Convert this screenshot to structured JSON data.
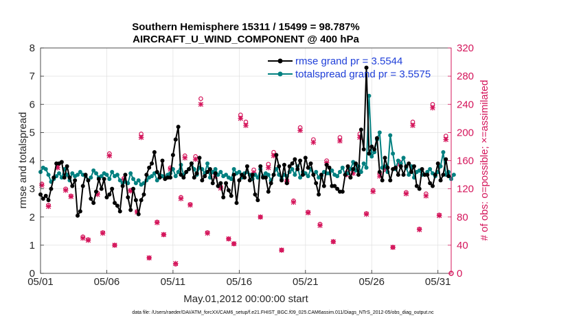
{
  "chart_data": {
    "type": "line",
    "title": "Southern Hemisphere 15311 / 15499 = 98.787%",
    "subtitle": "AIRCRAFT_U_WIND_COMPONENT @ 400 hPa",
    "xlabel": "May.01,2012 00:00:00 start",
    "ylabel": "rmse and totalspread",
    "ylabel_right": "# of obs: o=possible; ×=assimilated",
    "xlim": [
      0,
      31
    ],
    "ylim": [
      0,
      8
    ],
    "ylim_right": [
      0,
      320
    ],
    "x_tick_values": [
      0,
      5,
      10,
      15,
      20,
      25,
      30
    ],
    "x_tick_labels": [
      "05/01",
      "05/06",
      "05/11",
      "05/16",
      "05/21",
      "05/26",
      "05/31"
    ],
    "y_ticks": [
      "0",
      "1",
      "2",
      "3",
      "4",
      "5",
      "6",
      "7",
      "8"
    ],
    "y_ticks_right": [
      "0",
      "40",
      "80",
      "120",
      "160",
      "200",
      "240",
      "280",
      "320"
    ],
    "legend": [
      "rmse grand pr = 3.5544",
      "totalspread grand pr = 3.5575"
    ],
    "footer": "data file: /Users/raeder/DAI/ATM_forcXX/CAM6_setup/f.e21.FHIST_BGC.f09_025.CAM6assim.011/Diags_NTrS_2012-05/obs_diag_output.nc",
    "colors": {
      "rmse": "#000000",
      "spread": "#008080",
      "obs": "#d4145a",
      "axis_right": "#d4145a"
    },
    "series": [
      {
        "name": "rmse",
        "values": [
          2.8,
          2.65,
          2.75,
          2.6,
          3.0,
          3.4,
          3.9,
          3.9,
          3.95,
          3.4,
          3.8,
          3.4,
          3.1,
          3.3,
          2.05,
          2.2,
          3.1,
          3.5,
          3.3,
          2.65,
          2.5,
          2.9,
          3.35,
          3.0,
          3.35,
          2.7,
          2.8,
          3.0,
          2.5,
          2.4,
          2.2,
          3.1,
          3.5,
          2.7,
          2.25,
          3.0,
          2.6,
          2.1,
          2.6,
          2.8,
          3.5,
          3.75,
          3.9,
          4.3,
          3.6,
          3.4,
          4.0,
          3.35,
          3.4,
          3.4,
          4.2,
          4.75,
          5.2,
          3.5,
          3.4,
          3.6,
          3.7,
          3.9,
          3.4,
          3.55,
          4.1,
          3.3,
          3.45,
          3.6,
          3.7,
          3.2,
          3.55,
          3.1,
          3.2,
          2.7,
          3.2,
          2.95,
          2.75,
          3.5,
          2.5,
          3.3,
          3.5,
          3.4,
          3.8,
          3.3,
          3.5,
          2.8,
          2.6,
          3.8,
          3.4,
          3.4,
          2.9,
          3.2,
          3.5,
          4.2,
          3.8,
          3.3,
          3.85,
          3.2,
          3.8,
          3.9,
          4.05,
          3.7,
          4.0,
          3.5,
          4.1,
          3.75,
          3.9,
          3.5,
          3.2,
          2.8,
          3.5,
          3.1,
          3.85,
          3.75,
          3.1,
          3.1,
          3.0,
          2.9,
          2.9,
          3.5,
          3.8,
          3.4,
          3.7,
          3.9,
          3.5,
          5.1,
          4.4,
          7.3,
          4.25,
          4.5,
          4.4,
          4.8,
          3.6,
          3.3,
          4.1,
          3.75,
          3.3,
          3.7,
          3.75,
          3.5,
          3.8,
          3.5,
          3.8,
          3.9,
          3.6,
          3.8,
          3.1,
          3.0,
          3.7,
          3.5,
          3.5,
          3.2,
          3.1,
          3.5,
          3.9,
          3.3,
          3.5,
          4.05,
          3.45
        ],
        "x_start": 0.0,
        "x_step": 0.2
      },
      {
        "name": "totalspread",
        "values": [
          3.6,
          3.75,
          3.7,
          3.5,
          3.25,
          3.35,
          3.45,
          3.55,
          3.4,
          3.7,
          3.5,
          3.3,
          3.55,
          3.45,
          3.5,
          3.6,
          3.5,
          3.45,
          3.3,
          3.4,
          3.65,
          3.55,
          3.4,
          3.45,
          3.55,
          3.5,
          3.35,
          3.6,
          3.45,
          3.5,
          3.3,
          3.2,
          3.25,
          3.2,
          3.55,
          3.35,
          3.2,
          3.3,
          3.15,
          3.2,
          3.3,
          3.4,
          3.45,
          3.55,
          3.3,
          3.5,
          3.45,
          3.4,
          3.5,
          3.55,
          3.7,
          3.45,
          3.6,
          3.85,
          3.5,
          3.6,
          3.7,
          3.9,
          3.7,
          3.5,
          3.75,
          3.7,
          3.55,
          3.9,
          3.4,
          3.6,
          3.7,
          3.5,
          3.6,
          3.45,
          3.5,
          3.4,
          3.35,
          3.7,
          3.55,
          3.6,
          3.4,
          3.55,
          3.6,
          3.5,
          3.35,
          3.5,
          3.4,
          3.7,
          3.45,
          3.55,
          3.5,
          3.3,
          3.5,
          3.7,
          3.5,
          3.35,
          3.5,
          3.45,
          3.6,
          3.7,
          3.5,
          3.8,
          3.4,
          3.6,
          3.55,
          3.45,
          3.7,
          3.5,
          3.6,
          3.4,
          3.45,
          3.6,
          3.55,
          3.55,
          3.65,
          3.5,
          3.45,
          3.6,
          3.75,
          3.5,
          3.55,
          3.7,
          3.95,
          3.65,
          3.8,
          3.6,
          3.9,
          3.75,
          6.3,
          4.15,
          4.3,
          4.75,
          5.0,
          3.75,
          3.8,
          3.6,
          4.9,
          4.25,
          3.7,
          4.0,
          3.9,
          4.1,
          3.75,
          3.5,
          3.8,
          3.4,
          3.6,
          3.65,
          3.5,
          3.5,
          3.6,
          3.7,
          3.55,
          3.45,
          3.6,
          3.8,
          4.3,
          3.5,
          3.6,
          3.35,
          3.5
        ],
        "x_start": 0.0,
        "x_step": 0.2
      }
    ],
    "obs_possible": {
      "x": [
        0.1,
        0.6,
        1.3,
        1.9,
        2.3,
        3.2,
        3.6,
        4.3,
        4.7,
        5.2,
        5.6,
        6.3,
        6.8,
        7.3,
        7.6,
        8.2,
        8.8,
        9.3,
        9.8,
        10.2,
        10.6,
        10.9,
        11.3,
        11.7,
        12.1,
        12.6,
        13.2,
        13.6,
        14.2,
        14.6,
        15.1,
        15.5,
        16.1,
        16.6,
        17.2,
        17.6,
        18.2,
        18.6,
        19.1,
        19.6,
        20.2,
        20.6,
        21.1,
        21.6,
        22.1,
        22.6,
        23.1,
        23.6,
        24.1,
        24.6,
        25.1,
        25.6,
        26.1,
        26.6,
        27.1,
        27.6,
        28.1,
        28.6,
        29.1,
        29.6,
        30.1,
        30.6
      ],
      "y": [
        127,
        97,
        155,
        120,
        110,
        52,
        48,
        114,
        58,
        170,
        40,
        135,
        118,
        88,
        198,
        22,
        73,
        55,
        150,
        13,
        108,
        167,
        98,
        166,
        248,
        58,
        142,
        123,
        49,
        42,
        225,
        215,
        147,
        80,
        155,
        172,
        33,
        132,
        103,
        207,
        87,
        190,
        70,
        160,
        45,
        193,
        143,
        145,
        198,
        85,
        118,
        142,
        150,
        37,
        158,
        115,
        215,
        63,
        113,
        240,
        83,
        195
      ]
    },
    "obs_assimilated": {
      "x": [
        0.1,
        0.6,
        1.3,
        1.9,
        2.3,
        3.2,
        3.6,
        4.3,
        4.7,
        5.2,
        5.6,
        6.3,
        6.8,
        7.3,
        7.6,
        8.2,
        8.8,
        9.3,
        9.8,
        10.2,
        10.6,
        10.9,
        11.3,
        11.7,
        12.1,
        12.6,
        13.2,
        13.6,
        14.2,
        14.6,
        15.1,
        15.5,
        16.1,
        16.6,
        17.2,
        17.6,
        18.2,
        18.6,
        19.1,
        19.6,
        20.2,
        20.6,
        21.1,
        21.6,
        22.1,
        22.6,
        23.1,
        23.6,
        24.1,
        24.6,
        25.1,
        25.6,
        26.1,
        26.6,
        27.1,
        27.6,
        28.1,
        28.6,
        29.1,
        29.6,
        30.1,
        30.6
      ],
      "y": [
        125,
        95,
        150,
        118,
        109,
        50,
        47,
        112,
        57,
        167,
        40,
        133,
        117,
        87,
        193,
        22,
        72,
        55,
        148,
        14,
        106,
        164,
        97,
        162,
        240,
        57,
        138,
        121,
        49,
        42,
        220,
        210,
        143,
        80,
        150,
        167,
        33,
        130,
        101,
        203,
        86,
        186,
        68,
        157,
        45,
        188,
        140,
        142,
        193,
        84,
        116,
        138,
        147,
        37,
        155,
        113,
        210,
        62,
        110,
        235,
        82,
        190
      ]
    }
  }
}
